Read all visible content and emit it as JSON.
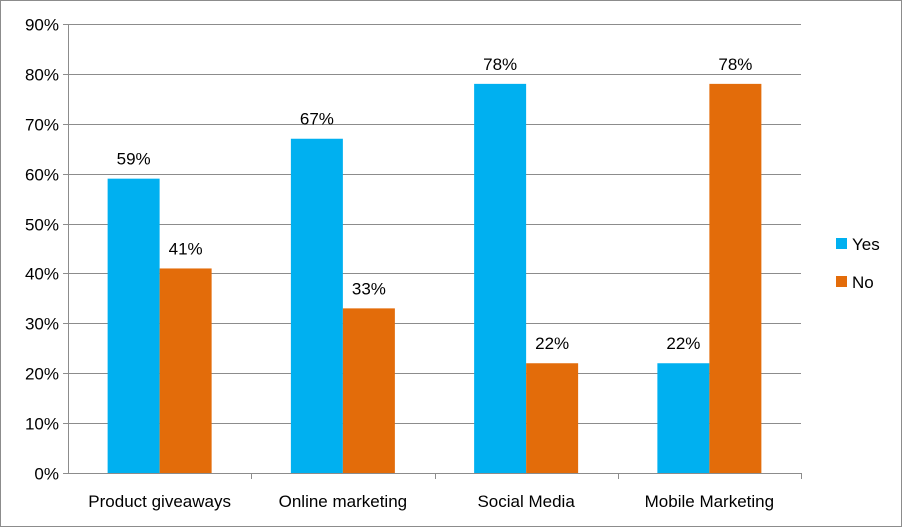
{
  "chart_data": {
    "type": "bar",
    "title": "",
    "xlabel": "",
    "ylabel": "",
    "categories": [
      "Product giveaways",
      "Online marketing",
      "Social Media",
      "Mobile Marketing"
    ],
    "series": [
      {
        "name": "Yes",
        "color": "#00b0f0",
        "values": [
          59,
          67,
          78,
          22
        ],
        "labels": [
          "59%",
          "67%",
          "78%",
          "22%"
        ]
      },
      {
        "name": "No",
        "color": "#e36c0a",
        "values": [
          41,
          33,
          22,
          78
        ],
        "labels": [
          "41%",
          "33%",
          "22%",
          "78%"
        ]
      }
    ],
    "ylim": [
      0,
      90
    ],
    "yticks": [
      0,
      10,
      20,
      30,
      40,
      50,
      60,
      70,
      80,
      90
    ],
    "ytick_labels": [
      "0%",
      "10%",
      "20%",
      "30%",
      "40%",
      "50%",
      "60%",
      "70%",
      "80%",
      "90%"
    ],
    "grid": true,
    "legend_position": "right"
  }
}
